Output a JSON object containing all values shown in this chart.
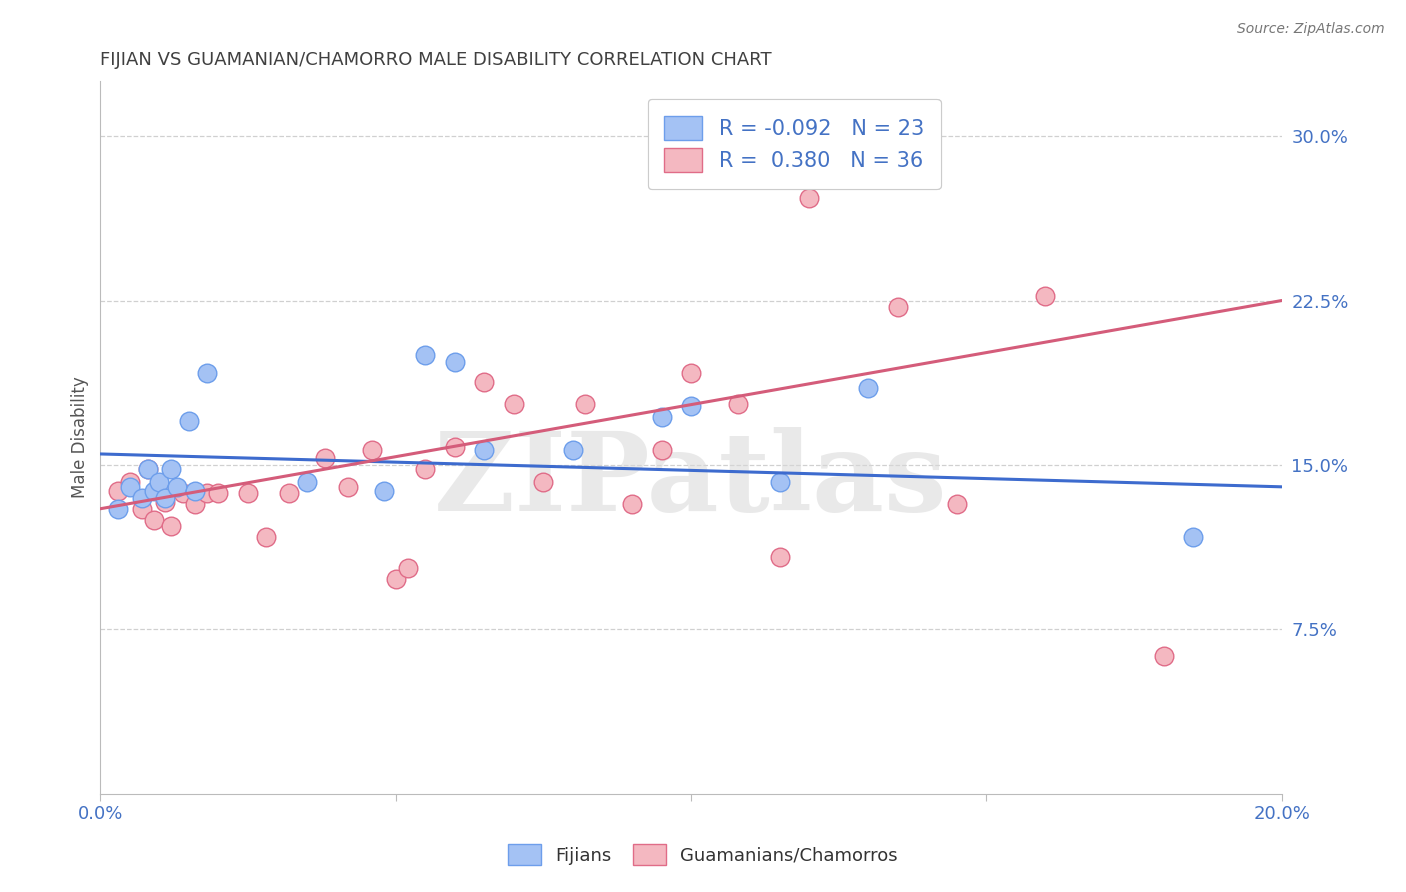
{
  "title": "FIJIAN VS GUAMANIAN/CHAMORRO MALE DISABILITY CORRELATION CHART",
  "source": "Source: ZipAtlas.com",
  "ylabel": "Male Disability",
  "xlim": [
    0.0,
    0.2
  ],
  "ylim": [
    0.0,
    0.325
  ],
  "xticks": [
    0.0,
    0.05,
    0.1,
    0.15,
    0.2
  ],
  "yticks": [
    0.075,
    0.15,
    0.225,
    0.3
  ],
  "ytick_labels": [
    "7.5%",
    "15.0%",
    "22.5%",
    "30.0%"
  ],
  "xtick_labels": [
    "0.0%",
    "",
    "",
    "",
    "20.0%"
  ],
  "fijian_fill_color": "#a4c2f4",
  "guamanian_fill_color": "#f4b8c1",
  "fijian_edge_color": "#6d9eeb",
  "guamanian_edge_color": "#e06c88",
  "fijian_line_color": "#3d6bce",
  "guamanian_line_color": "#d45c7a",
  "legend_text_color": "#4472c4",
  "tick_color": "#4472c4",
  "title_color": "#404040",
  "R_fijian": -0.092,
  "N_fijian": 23,
  "R_guamanian": 0.38,
  "N_guamanian": 36,
  "fijian_x": [
    0.003,
    0.005,
    0.007,
    0.008,
    0.009,
    0.01,
    0.011,
    0.012,
    0.013,
    0.015,
    0.016,
    0.018,
    0.035,
    0.048,
    0.055,
    0.06,
    0.065,
    0.08,
    0.095,
    0.1,
    0.115,
    0.13,
    0.185
  ],
  "fijian_y": [
    0.13,
    0.14,
    0.135,
    0.148,
    0.138,
    0.142,
    0.135,
    0.148,
    0.14,
    0.17,
    0.138,
    0.192,
    0.142,
    0.138,
    0.2,
    0.197,
    0.157,
    0.157,
    0.172,
    0.177,
    0.142,
    0.185,
    0.117
  ],
  "guamanian_x": [
    0.003,
    0.005,
    0.007,
    0.008,
    0.009,
    0.01,
    0.011,
    0.012,
    0.014,
    0.016,
    0.018,
    0.02,
    0.025,
    0.028,
    0.032,
    0.038,
    0.042,
    0.046,
    0.05,
    0.052,
    0.055,
    0.06,
    0.065,
    0.07,
    0.075,
    0.082,
    0.09,
    0.095,
    0.1,
    0.108,
    0.115,
    0.12,
    0.135,
    0.145,
    0.16,
    0.18
  ],
  "guamanian_y": [
    0.138,
    0.142,
    0.13,
    0.148,
    0.125,
    0.14,
    0.133,
    0.122,
    0.137,
    0.132,
    0.137,
    0.137,
    0.137,
    0.117,
    0.137,
    0.153,
    0.14,
    0.157,
    0.098,
    0.103,
    0.148,
    0.158,
    0.188,
    0.178,
    0.142,
    0.178,
    0.132,
    0.157,
    0.192,
    0.178,
    0.108,
    0.272,
    0.222,
    0.132,
    0.227,
    0.063
  ],
  "watermark": "ZIPatlas",
  "background_color": "#ffffff",
  "grid_color": "#d0d0d0"
}
